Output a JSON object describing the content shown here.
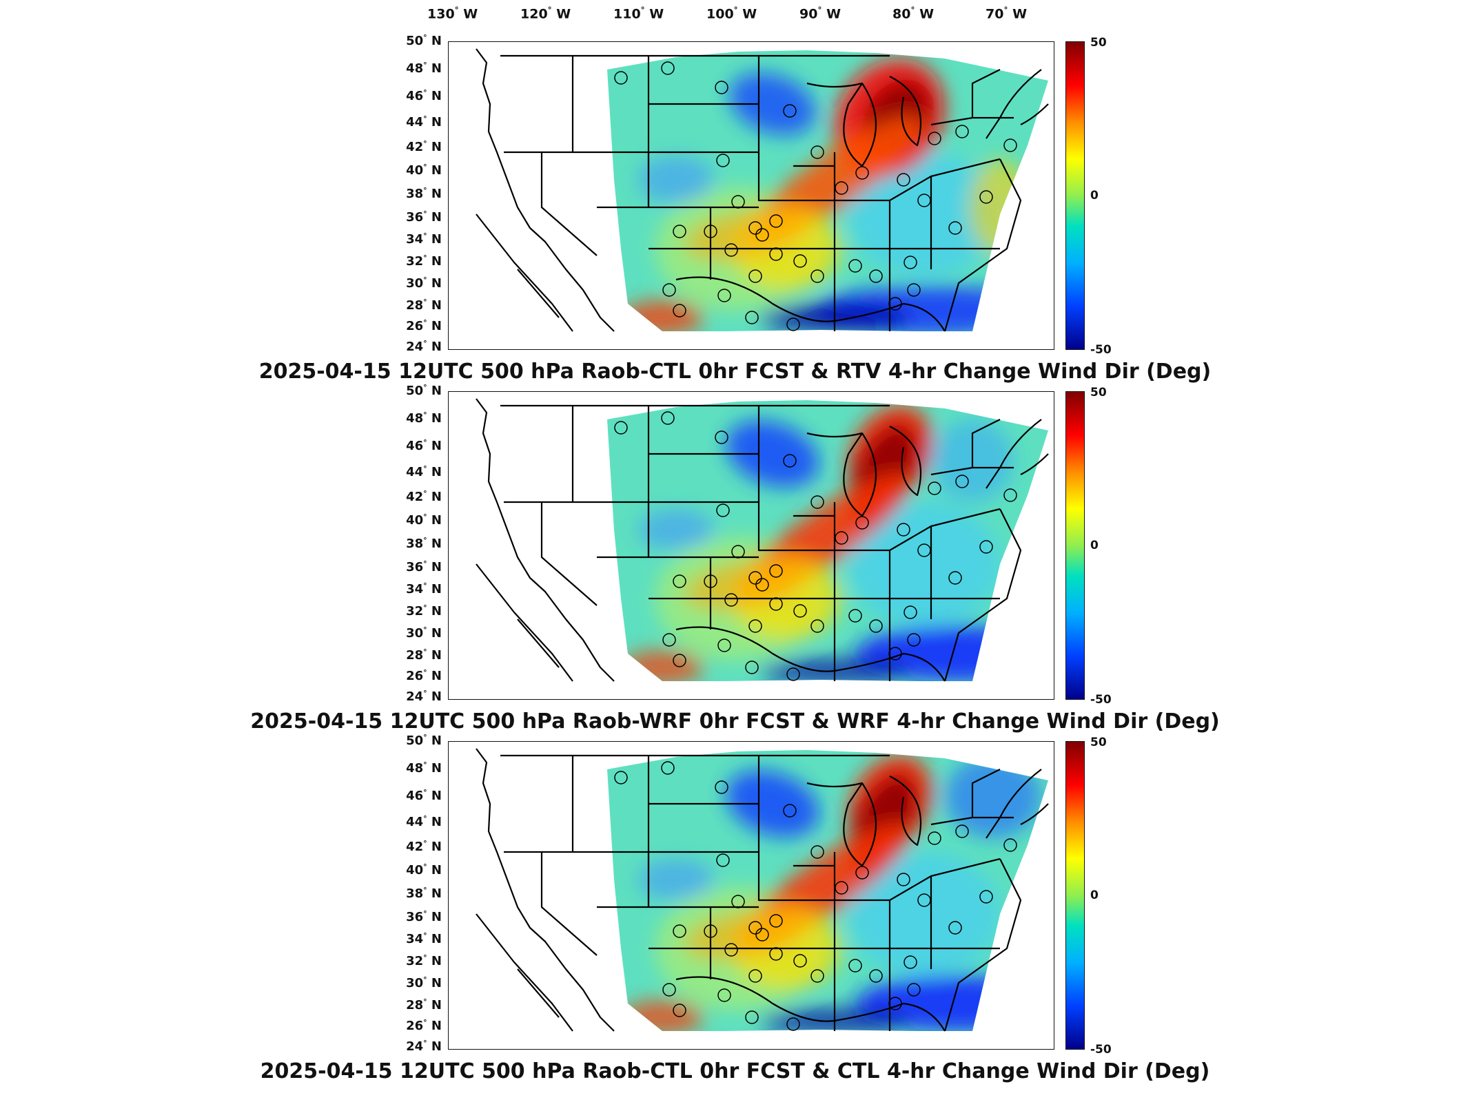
{
  "longitude_ticks": [
    "130",
    "120",
    "110",
    "100",
    "90",
    "80",
    "70"
  ],
  "longitude_suffix": "W",
  "latitude_ticks": [
    "50",
    "48",
    "46",
    "44",
    "42",
    "40",
    "38",
    "36",
    "34",
    "32",
    "30",
    "28",
    "26",
    "24"
  ],
  "latitude_suffix": "N",
  "degree_symbol": "°",
  "colorbar": {
    "max_label": "50",
    "mid_label": "0",
    "min_label": "-50",
    "colors": [
      "#800000",
      "#ff0000",
      "#ff8c00",
      "#ffff00",
      "#90ee50",
      "#00e0c0",
      "#00b0ff",
      "#0040ff",
      "#00008b"
    ]
  },
  "panels": [
    {
      "title": "2025-04-15 12UTC 500 hPa Raob-CTL 0hr FCST & RTV 4-hr Change Wind Dir (Deg)"
    },
    {
      "title": "2025-04-15 12UTC 500 hPa Raob-WRF 0hr FCST & WRF 4-hr Change Wind Dir (Deg)"
    },
    {
      "title": "2025-04-15 12UTC 500 hPa Raob-CTL 0hr FCST & CTL 4-hr Change Wind Dir (Deg)"
    }
  ]
}
